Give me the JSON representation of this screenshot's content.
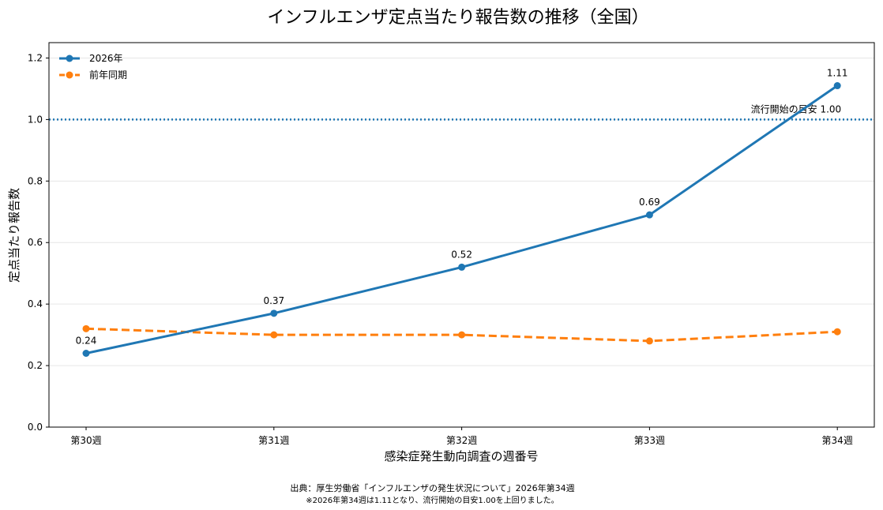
{
  "chart_data": {
    "type": "line",
    "title": "インフルエンザ定点当たり報告数の推移（全国）",
    "xlabel": "感染症発生動向調査の週番号",
    "ylabel": "定点当たり報告数",
    "categories": [
      "第30週",
      "第31週",
      "第32週",
      "第33週",
      "第34週"
    ],
    "ylim": [
      0,
      1.25
    ],
    "yticks": [
      "0.0",
      "0.2",
      "0.4",
      "0.6",
      "0.8",
      "1.0",
      "1.2"
    ],
    "grid": "horizontal",
    "legend_position": "top-left",
    "series": [
      {
        "name": "2026年",
        "values": [
          0.24,
          0.37,
          0.52,
          0.69,
          1.11
        ],
        "data_labels": [
          "0.24",
          "0.37",
          "0.52",
          "0.69",
          "1.11"
        ],
        "color": "#1f77b4",
        "style": "solid"
      },
      {
        "name": "前年同期",
        "values": [
          0.32,
          0.3,
          0.3,
          0.28,
          0.31
        ],
        "color": "#ff7f0e",
        "style": "dashed"
      }
    ],
    "reference_line": {
      "value": 1.0,
      "label": "流行開始の目安 1.00",
      "color": "#1f77b4",
      "style": "dotted"
    }
  },
  "footer": {
    "source": "出典：厚生労働省「インフルエンザの発生状況について」2026年第34週",
    "note": "※2026年第34週は1.11となり、流行開始の目安1.00を上回りました。"
  }
}
